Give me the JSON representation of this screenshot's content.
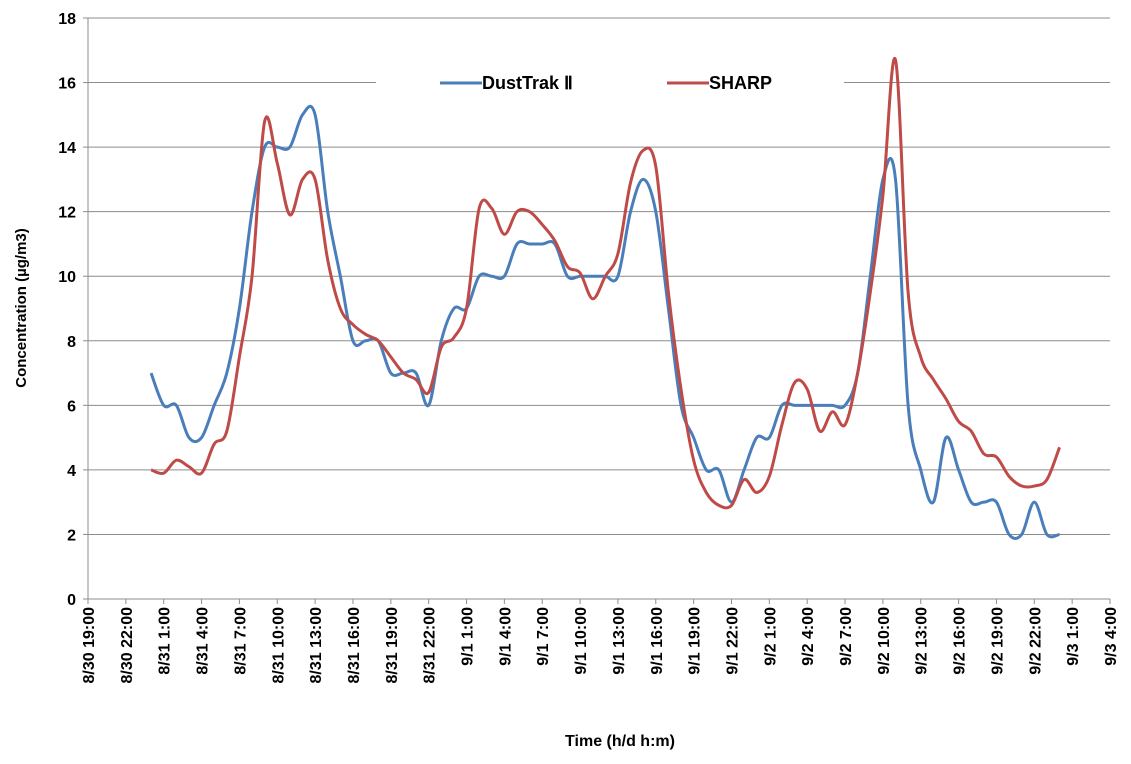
{
  "chart_data": {
    "type": "line",
    "x_label": "Time (h/d h:m)",
    "y_label": "Concentration (µg/m3)",
    "x": [
      "8/31 0:00",
      "8/31 1:00",
      "8/31 2:00",
      "8/31 3:00",
      "8/31 4:00",
      "8/31 5:00",
      "8/31 6:00",
      "8/31 7:00",
      "8/31 8:00",
      "8/31 9:00",
      "8/31 10:00",
      "8/31 11:00",
      "8/31 12:00",
      "8/31 13:00",
      "8/31 14:00",
      "8/31 15:00",
      "8/31 16:00",
      "8/31 17:00",
      "8/31 18:00",
      "8/31 19:00",
      "8/31 20:00",
      "8/31 21:00",
      "8/31 22:00",
      "8/31 23:00",
      "9/1 0:00",
      "9/1 1:00",
      "9/1 2:00",
      "9/1 3:00",
      "9/1 4:00",
      "9/1 5:00",
      "9/1 6:00",
      "9/1 7:00",
      "9/1 8:00",
      "9/1 9:00",
      "9/1 10:00",
      "9/1 11:00",
      "9/1 12:00",
      "9/1 13:00",
      "9/1 14:00",
      "9/1 15:00",
      "9/1 16:00",
      "9/1 17:00",
      "9/1 18:00",
      "9/1 19:00",
      "9/1 20:00",
      "9/1 21:00",
      "9/1 22:00",
      "9/1 23:00",
      "9/2 0:00",
      "9/2 1:00",
      "9/2 2:00",
      "9/2 3:00",
      "9/2 4:00",
      "9/2 5:00",
      "9/2 6:00",
      "9/2 7:00",
      "9/2 8:00",
      "9/2 9:00",
      "9/2 10:00",
      "9/2 11:00",
      "9/2 12:00",
      "9/2 13:00",
      "9/2 14:00",
      "9/2 15:00",
      "9/2 16:00",
      "9/2 17:00",
      "9/2 18:00",
      "9/2 19:00",
      "9/2 20:00",
      "9/2 21:00",
      "9/2 22:00",
      "9/2 23:00",
      "9/3 0:00"
    ],
    "series": [
      {
        "name": "DustTrak Ⅱ",
        "color": "#4a7ebb",
        "values": [
          7,
          6,
          6,
          5,
          5,
          6,
          7,
          9,
          12,
          14,
          14,
          14,
          15,
          15,
          12,
          10,
          8,
          8,
          8,
          7,
          7,
          7,
          6,
          8,
          9,
          9,
          10,
          10,
          10,
          11,
          11,
          11,
          11,
          10,
          10,
          10,
          10,
          10,
          12,
          13,
          12,
          9,
          6,
          5,
          4,
          4,
          3,
          4,
          5,
          5,
          6,
          6,
          6,
          6,
          6,
          6,
          7,
          10,
          13,
          13,
          6,
          4,
          3,
          5,
          4,
          3,
          3,
          3,
          2,
          2,
          3,
          2,
          2
        ]
      },
      {
        "name": "SHARP",
        "color": "#be4b48",
        "values": [
          4,
          3.9,
          4.3,
          4.1,
          3.9,
          4.8,
          5.2,
          7.5,
          10,
          14.8,
          13.5,
          11.9,
          13,
          13,
          10.5,
          9,
          8.5,
          8.2,
          8,
          7.5,
          7,
          6.8,
          6.4,
          7.8,
          8.1,
          9,
          12.1,
          12.1,
          11.3,
          12,
          12,
          11.6,
          11.1,
          10.3,
          10.1,
          9.3,
          10,
          10.7,
          12.9,
          13.9,
          13.4,
          9.5,
          6.5,
          4.3,
          3.3,
          2.9,
          2.9,
          3.7,
          3.3,
          3.8,
          5.4,
          6.7,
          6.5,
          5.2,
          5.8,
          5.4,
          7,
          9.5,
          12.5,
          16.7,
          9.5,
          7.5,
          6.8,
          6.2,
          5.5,
          5.2,
          4.5,
          4.4,
          3.8,
          3.5,
          3.5,
          3.7,
          4.7
        ]
      }
    ],
    "xticks": [
      "8/30 19:00",
      "8/30 22:00",
      "8/31 1:00",
      "8/31 4:00",
      "8/31 7:00",
      "8/31 10:00",
      "8/31 13:00",
      "8/31 16:00",
      "8/31 19:00",
      "8/31 22:00",
      "9/1 1:00",
      "9/1 4:00",
      "9/1 7:00",
      "9/1 10:00",
      "9/1 13:00",
      "9/1 16:00",
      "9/1 19:00",
      "9/1 22:00",
      "9/2 1:00",
      "9/2 4:00",
      "9/2 7:00",
      "9/2 10:00",
      "9/2 13:00",
      "9/2 16:00",
      "9/2 19:00",
      "9/2 22:00",
      "9/3 1:00",
      "9/3 4:00"
    ],
    "xlim": [
      "8/30 19:00",
      "9/3 4:00"
    ],
    "ylim": [
      0,
      18
    ],
    "yticks": [
      0,
      2,
      4,
      6,
      8,
      10,
      12,
      14,
      16,
      18
    ],
    "grid": true,
    "legend": "top"
  }
}
